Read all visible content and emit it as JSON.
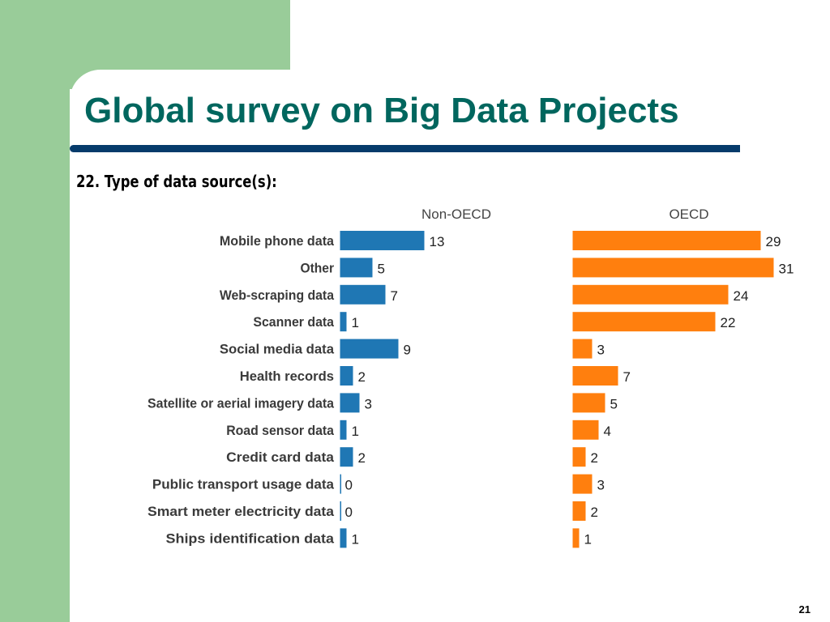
{
  "slide": {
    "title": "Global survey on Big Data Projects",
    "subtitle": "22. Type of data source(s):",
    "page_number": "21"
  },
  "chart_data": {
    "type": "bar",
    "orientation": "horizontal",
    "title": "22. Type of data source(s):",
    "categories": [
      "Mobile phone data",
      "Other",
      "Web-scraping data",
      "Scanner data",
      "Social media data",
      "Health records",
      "Satellite or aerial imagery data",
      "Road sensor data",
      "Credit card data",
      "Public transport usage data",
      "Smart meter electricity data",
      "Ships identification data"
    ],
    "series": [
      {
        "name": "Non-OECD",
        "color": "#1f77b4",
        "values": [
          13,
          5,
          7,
          1,
          9,
          2,
          3,
          1,
          2,
          0,
          0,
          1
        ]
      },
      {
        "name": "OECD",
        "color": "#ff7f0e",
        "values": [
          29,
          31,
          24,
          22,
          3,
          7,
          5,
          4,
          2,
          3,
          2,
          1
        ]
      }
    ],
    "data_labels": true,
    "grid": false,
    "legend": "none"
  }
}
